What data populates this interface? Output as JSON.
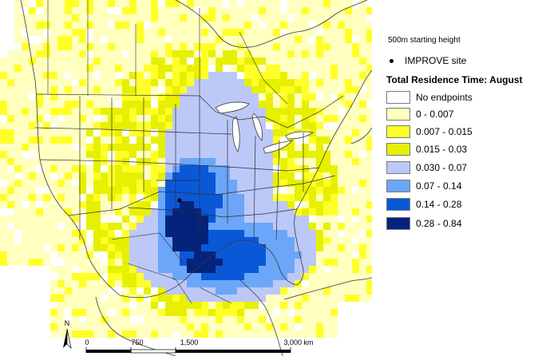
{
  "legend": {
    "height_text": "500m starting height",
    "site_label": "IMPROVE site",
    "title": "Total Residence Time: August",
    "classes": [
      {
        "label": "No endpoints",
        "color": "#ffffff"
      },
      {
        "label": "0 - 0.007",
        "color": "#ffffc0"
      },
      {
        "label": "0.007 - 0.015",
        "color": "#ffff28"
      },
      {
        "label": "0.015 - 0.03",
        "color": "#e6f000"
      },
      {
        "label": "0.030 - 0.07",
        "color": "#bcc8f8"
      },
      {
        "label": "0.07 - 0.14",
        "color": "#6ba6f8"
      },
      {
        "label": "0.14 - 0.28",
        "color": "#0a58d8"
      },
      {
        "label": "0.28 - 0.84",
        "color": "#05237a"
      }
    ]
  },
  "scale_bar": {
    "north_label": "N",
    "ticks": [
      "0",
      "750",
      "1,500",
      "3,000 km"
    ]
  }
}
